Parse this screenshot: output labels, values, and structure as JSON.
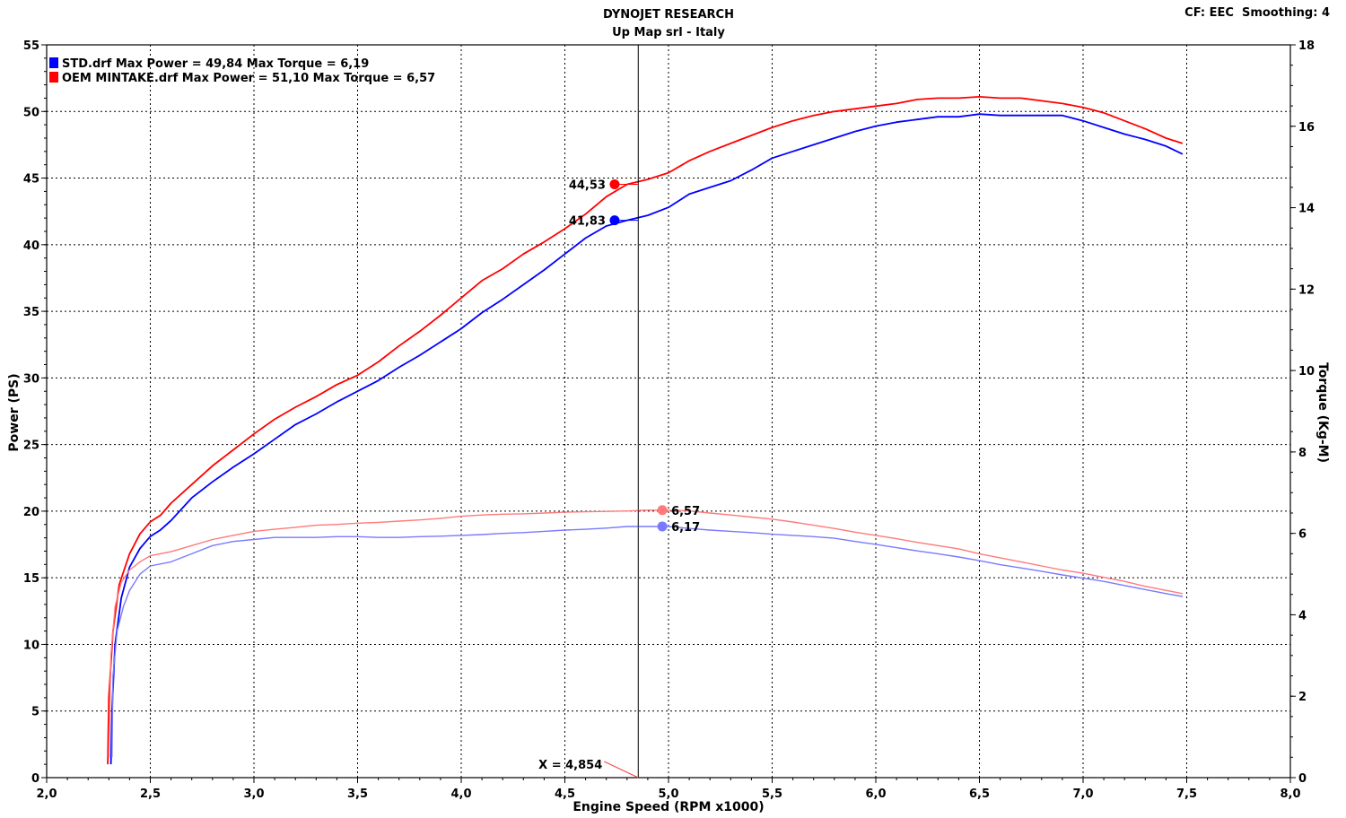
{
  "header": {
    "title": "DYNOJET RESEARCH",
    "subtitle": "Up Map srl - Italy",
    "corner": "CF: EEC  Smoothing: 4"
  },
  "colors": {
    "std_power": "#0000ff",
    "oem_power": "#ff0000",
    "std_torque": "#7a7aff",
    "oem_torque": "#ff7a7a"
  },
  "chart_data": {
    "type": "line",
    "xlabel": "Engine Speed (RPM x1000)",
    "ylabel": "Power (PS)",
    "y2label": "Torque (Kg-M)",
    "xlim": [
      2.0,
      8.0
    ],
    "ylim": [
      0,
      55
    ],
    "y2lim": [
      0,
      18
    ],
    "x_ticks": [
      "2,0",
      "2,5",
      "3,0",
      "3,5",
      "4,0",
      "4,5",
      "5,0",
      "5,5",
      "6,0",
      "6,5",
      "7,0",
      "7,5",
      "8,0"
    ],
    "y_ticks": [
      "0",
      "5",
      "10",
      "15",
      "20",
      "25",
      "30",
      "35",
      "40",
      "45",
      "50",
      "55"
    ],
    "y2_ticks": [
      "0",
      "2",
      "4",
      "6",
      "8",
      "10",
      "12",
      "14",
      "16",
      "18"
    ],
    "grid": true,
    "legend_position": "top-left",
    "legend": [
      {
        "text": "STD.drf Max Power = 49,84    Max Torque = 6,19",
        "color": "#0000ff"
      },
      {
        "text": "OEM MINTAKE.drf Max Power = 51,10    Max Torque = 6,57",
        "color": "#ff0000"
      }
    ],
    "cursor": {
      "x": 4.854,
      "label": "X = 4,854"
    },
    "markers": [
      {
        "series": "std_power",
        "x": 4.74,
        "y": 41.83,
        "label": "41,83",
        "axis": "left",
        "color": "#0000ff"
      },
      {
        "series": "oem_power",
        "x": 4.74,
        "y": 44.53,
        "label": "44,53",
        "axis": "left",
        "color": "#ff0000"
      },
      {
        "series": "std_torque",
        "x": 4.97,
        "y": 6.17,
        "label": "6,17",
        "axis": "right",
        "color": "#7a7aff"
      },
      {
        "series": "oem_torque",
        "x": 4.97,
        "y": 6.57,
        "label": "6,57",
        "axis": "right",
        "color": "#ff7a7a"
      }
    ],
    "series": [
      {
        "id": "std_power",
        "axis": "left",
        "color": "#0000ff",
        "width": 1.8,
        "x": [
          2.31,
          2.315,
          2.33,
          2.36,
          2.4,
          2.45,
          2.5,
          2.55,
          2.6,
          2.7,
          2.8,
          2.9,
          3.0,
          3.1,
          3.2,
          3.3,
          3.4,
          3.5,
          3.6,
          3.7,
          3.8,
          3.9,
          4.0,
          4.1,
          4.2,
          4.3,
          4.4,
          4.5,
          4.6,
          4.7,
          4.8,
          4.9,
          5.0,
          5.1,
          5.2,
          5.3,
          5.4,
          5.5,
          5.6,
          5.7,
          5.8,
          5.9,
          6.0,
          6.1,
          6.2,
          6.3,
          6.4,
          6.5,
          6.6,
          6.7,
          6.8,
          6.9,
          7.0,
          7.1,
          7.2,
          7.3,
          7.4,
          7.48
        ],
        "y": [
          1,
          5,
          10,
          13.5,
          15.8,
          17.2,
          18.1,
          18.6,
          19.3,
          21.0,
          22.2,
          23.3,
          24.3,
          25.4,
          26.5,
          27.3,
          28.2,
          29.0,
          29.8,
          30.8,
          31.7,
          32.7,
          33.7,
          34.9,
          35.9,
          37.0,
          38.1,
          39.3,
          40.5,
          41.4,
          41.83,
          42.2,
          42.8,
          43.8,
          44.3,
          44.8,
          45.6,
          46.5,
          47.0,
          47.5,
          48.0,
          48.5,
          48.9,
          49.2,
          49.4,
          49.6,
          49.6,
          49.8,
          49.7,
          49.7,
          49.7,
          49.7,
          49.3,
          48.8,
          48.3,
          47.9,
          47.4,
          46.8
        ]
      },
      {
        "id": "oem_power",
        "axis": "left",
        "color": "#ff0000",
        "width": 1.8,
        "x": [
          2.295,
          2.3,
          2.32,
          2.35,
          2.4,
          2.45,
          2.5,
          2.55,
          2.6,
          2.7,
          2.8,
          2.9,
          3.0,
          3.1,
          3.2,
          3.3,
          3.4,
          3.5,
          3.6,
          3.7,
          3.8,
          3.9,
          4.0,
          4.1,
          4.2,
          4.3,
          4.4,
          4.5,
          4.6,
          4.7,
          4.8,
          4.9,
          5.0,
          5.1,
          5.2,
          5.3,
          5.4,
          5.5,
          5.6,
          5.7,
          5.8,
          5.9,
          6.0,
          6.1,
          6.2,
          6.3,
          6.4,
          6.5,
          6.6,
          6.7,
          6.8,
          6.9,
          7.0,
          7.1,
          7.2,
          7.3,
          7.4,
          7.48
        ],
        "y": [
          1,
          6,
          11,
          14.5,
          16.8,
          18.3,
          19.2,
          19.7,
          20.6,
          22.0,
          23.4,
          24.6,
          25.8,
          26.9,
          27.8,
          28.6,
          29.5,
          30.2,
          31.2,
          32.4,
          33.5,
          34.7,
          36.0,
          37.3,
          38.2,
          39.3,
          40.2,
          41.2,
          42.3,
          43.6,
          44.53,
          44.9,
          45.4,
          46.3,
          47.0,
          47.6,
          48.2,
          48.8,
          49.3,
          49.7,
          50.0,
          50.2,
          50.4,
          50.6,
          50.9,
          51.0,
          51.0,
          51.1,
          51.0,
          51.0,
          50.8,
          50.6,
          50.3,
          49.9,
          49.3,
          48.7,
          48.0,
          47.6
        ]
      },
      {
        "id": "std_torque",
        "axis": "right",
        "color": "#7a7aff",
        "width": 1.4,
        "x": [
          2.315,
          2.32,
          2.34,
          2.37,
          2.4,
          2.45,
          2.5,
          2.6,
          2.7,
          2.8,
          2.9,
          3.0,
          3.1,
          3.2,
          3.3,
          3.4,
          3.5,
          3.6,
          3.7,
          3.8,
          3.9,
          4.0,
          4.1,
          4.2,
          4.3,
          4.4,
          4.5,
          4.6,
          4.7,
          4.8,
          4.9,
          5.0,
          5.1,
          5.2,
          5.3,
          5.4,
          5.5,
          5.6,
          5.7,
          5.8,
          5.9,
          6.0,
          6.1,
          6.2,
          6.3,
          6.4,
          6.5,
          6.6,
          6.7,
          6.8,
          6.9,
          7.0,
          7.1,
          7.2,
          7.3,
          7.4,
          7.48
        ],
        "y": [
          0.5,
          2.5,
          3.6,
          4.2,
          4.6,
          5.0,
          5.2,
          5.3,
          5.5,
          5.7,
          5.8,
          5.85,
          5.9,
          5.9,
          5.9,
          5.92,
          5.92,
          5.9,
          5.9,
          5.92,
          5.93,
          5.95,
          5.97,
          6.0,
          6.02,
          6.05,
          6.08,
          6.1,
          6.13,
          6.17,
          6.17,
          6.17,
          6.12,
          6.08,
          6.05,
          6.02,
          5.98,
          5.95,
          5.92,
          5.88,
          5.8,
          5.73,
          5.65,
          5.57,
          5.5,
          5.42,
          5.33,
          5.23,
          5.15,
          5.07,
          4.98,
          4.9,
          4.82,
          4.72,
          4.62,
          4.52,
          4.45
        ]
      },
      {
        "id": "oem_torque",
        "axis": "right",
        "color": "#ff7a7a",
        "width": 1.4,
        "x": [
          2.3,
          2.31,
          2.33,
          2.36,
          2.4,
          2.45,
          2.5,
          2.6,
          2.7,
          2.8,
          2.9,
          3.0,
          3.1,
          3.2,
          3.3,
          3.4,
          3.5,
          3.6,
          3.7,
          3.8,
          3.9,
          4.0,
          4.1,
          4.2,
          4.3,
          4.4,
          4.5,
          4.6,
          4.7,
          4.8,
          4.9,
          5.0,
          5.1,
          5.2,
          5.3,
          5.4,
          5.5,
          5.6,
          5.7,
          5.8,
          5.9,
          6.0,
          6.1,
          6.2,
          6.3,
          6.4,
          6.5,
          6.6,
          6.7,
          6.8,
          6.9,
          7.0,
          7.1,
          7.2,
          7.3,
          7.4,
          7.48
        ],
        "y": [
          0.5,
          3.0,
          4.2,
          4.8,
          5.1,
          5.3,
          5.45,
          5.55,
          5.7,
          5.85,
          5.95,
          6.05,
          6.1,
          6.15,
          6.2,
          6.22,
          6.25,
          6.27,
          6.3,
          6.33,
          6.37,
          6.42,
          6.45,
          6.47,
          6.48,
          6.5,
          6.52,
          6.53,
          6.54,
          6.55,
          6.57,
          6.57,
          6.55,
          6.5,
          6.45,
          6.4,
          6.35,
          6.28,
          6.2,
          6.12,
          6.03,
          5.95,
          5.87,
          5.78,
          5.7,
          5.62,
          5.5,
          5.4,
          5.3,
          5.2,
          5.1,
          5.02,
          4.92,
          4.82,
          4.7,
          4.6,
          4.52
        ]
      }
    ]
  }
}
